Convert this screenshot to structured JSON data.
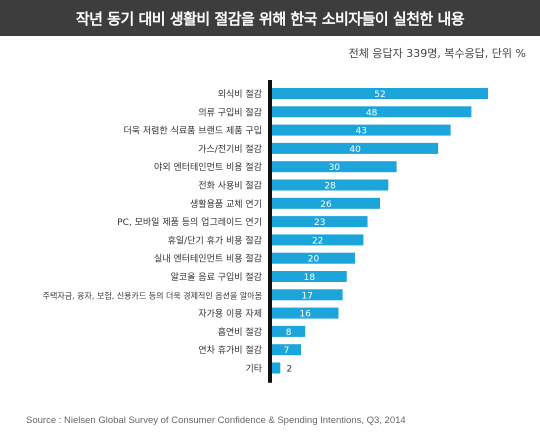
{
  "header": {
    "title": "작년 동기 대비 생활비 절감을 위해 한국 소비자들이 실천한 내용",
    "note": "전체 응답자 339명, 복수응답, 단위 %"
  },
  "footer": {
    "source": "Source : Nielsen Global Survey of Consumer Confidence & Spending Intentions, Q3, 2014"
  },
  "colors": {
    "bar": "#1ba5db",
    "axis": "#111111",
    "banner": "#3d3d3d"
  },
  "chart_data": {
    "type": "bar",
    "orientation": "horizontal",
    "categories": [
      "외식비 절감",
      "의류 구입비 절감",
      "더욱 저렴한 식료품 브랜드 제품 구입",
      "가스/전기비 절감",
      "야외 엔터테인먼트 비용 절감",
      "전화 사용비 절감",
      "생활용품 교체 연기",
      "PC, 모바일 제품 등의 업그레이드 연기",
      "휴일/단기 휴가 비용 절감",
      "실내 엔터테인먼트 비용 절감",
      "알코올 음료 구입비 절감",
      "주택자금, 융자, 보험, 신용카드 등의 더욱 경제적인 옵션을 알아봄",
      "자가용 이용 자제",
      "흡연비 절감",
      "연차 휴가비 절감",
      "기타"
    ],
    "values": [
      52,
      48,
      43,
      40,
      30,
      28,
      26,
      23,
      22,
      20,
      18,
      17,
      16,
      8,
      7,
      2
    ],
    "xlim": [
      0,
      52
    ],
    "legend": "none",
    "grid": false
  }
}
